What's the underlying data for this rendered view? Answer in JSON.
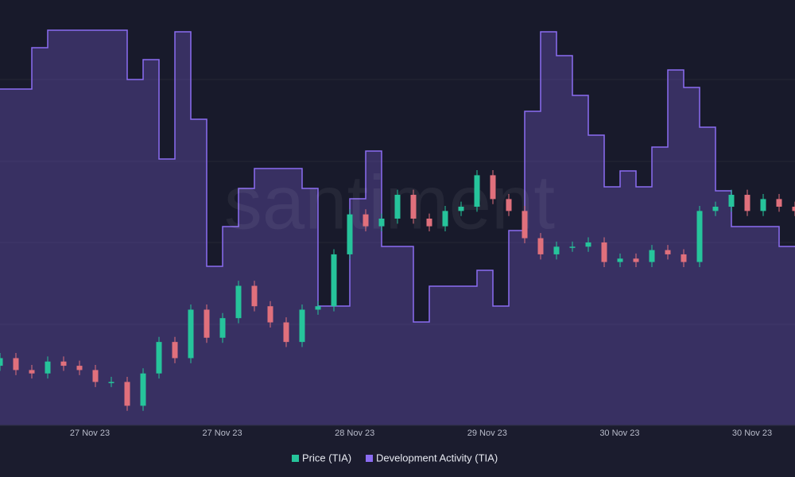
{
  "chart_data": {
    "type": "candlestick",
    "watermark": "santiment",
    "xticks": [
      "27 Nov 23",
      "27 Nov 23",
      "28 Nov 23",
      "29 Nov 23",
      "30 Nov 23",
      "30 Nov 23"
    ],
    "ylim": [
      7,
      12
    ],
    "y2lim": [
      0,
      53.5
    ],
    "price": {
      "name": "Price (TIA)",
      "up_color": "#26c49b",
      "down_color": "#e0707c",
      "open": [
        7.7,
        7.79,
        7.65,
        7.61,
        7.75,
        7.7,
        7.65,
        7.51,
        7.51,
        7.23,
        7.61,
        7.98,
        7.79,
        8.36,
        8.03,
        8.26,
        8.64,
        8.4,
        8.21,
        7.98,
        8.36,
        8.4,
        9.01,
        9.48,
        9.34,
        9.43,
        9.71,
        9.43,
        9.34,
        9.52,
        9.57,
        9.94,
        9.66,
        9.52,
        9.2,
        9.01,
        9.1,
        9.1,
        9.15,
        8.92,
        8.96,
        8.92,
        9.06,
        9.01,
        8.92,
        9.52,
        9.57,
        9.71,
        9.52,
        9.66,
        9.57
      ],
      "close": [
        7.79,
        7.65,
        7.61,
        7.75,
        7.7,
        7.65,
        7.51,
        7.51,
        7.23,
        7.61,
        7.98,
        7.79,
        8.36,
        8.03,
        8.26,
        8.64,
        8.4,
        8.21,
        7.98,
        8.36,
        8.4,
        9.01,
        9.48,
        9.34,
        9.43,
        9.71,
        9.43,
        9.34,
        9.52,
        9.57,
        9.94,
        9.66,
        9.52,
        9.2,
        9.01,
        9.1,
        9.1,
        9.15,
        8.92,
        8.96,
        8.92,
        9.06,
        9.01,
        8.92,
        9.52,
        9.57,
        9.71,
        9.52,
        9.66,
        9.57,
        9.52
      ],
      "high": [
        7.85,
        7.85,
        7.71,
        7.81,
        7.81,
        7.76,
        7.71,
        7.57,
        7.57,
        7.67,
        8.04,
        8.04,
        8.42,
        8.42,
        8.32,
        8.7,
        8.7,
        8.46,
        8.27,
        8.42,
        8.46,
        9.07,
        9.54,
        9.54,
        9.49,
        9.77,
        9.77,
        9.49,
        9.58,
        9.63,
        10.0,
        10.0,
        9.72,
        9.58,
        9.26,
        9.16,
        9.16,
        9.21,
        9.21,
        9.02,
        9.02,
        9.12,
        9.12,
        9.07,
        9.58,
        9.63,
        9.77,
        9.77,
        9.72,
        9.72,
        9.63
      ],
      "low": [
        7.64,
        7.59,
        7.55,
        7.55,
        7.64,
        7.59,
        7.45,
        7.45,
        7.17,
        7.17,
        7.55,
        7.73,
        7.73,
        7.97,
        7.97,
        8.2,
        8.34,
        8.15,
        7.92,
        7.92,
        8.3,
        8.34,
        8.95,
        9.28,
        9.28,
        9.37,
        9.37,
        9.28,
        9.28,
        9.46,
        9.51,
        9.6,
        9.46,
        9.14,
        8.95,
        8.95,
        9.04,
        9.04,
        8.86,
        8.86,
        8.86,
        8.86,
        8.95,
        8.86,
        8.86,
        9.46,
        9.51,
        9.46,
        9.46,
        9.51,
        9.46
      ]
    },
    "series": [
      {
        "name": "Development Activity (TIA)",
        "color": "#8b6cf2",
        "axis": "y2",
        "step": true,
        "values": [
          42.3,
          42.3,
          42.3,
          47.5,
          49.7,
          49.7,
          49.7,
          49.7,
          49.7,
          43.5,
          46.0,
          33.5,
          49.5,
          38.5,
          20.0,
          25.0,
          29.8,
          32.3,
          32.3,
          32.3,
          29.8,
          15.0,
          15.0,
          28.5,
          34.5,
          22.5,
          22.5,
          13.0,
          17.5,
          17.5,
          17.5,
          19.5,
          15.0,
          24.5,
          39.5,
          49.5,
          46.5,
          41.5,
          36.5,
          30.0,
          32.0,
          30.0,
          35.0,
          44.7,
          42.5,
          37.5,
          29.5,
          25.0,
          25.0,
          25.0,
          22.5
        ]
      }
    ]
  }
}
